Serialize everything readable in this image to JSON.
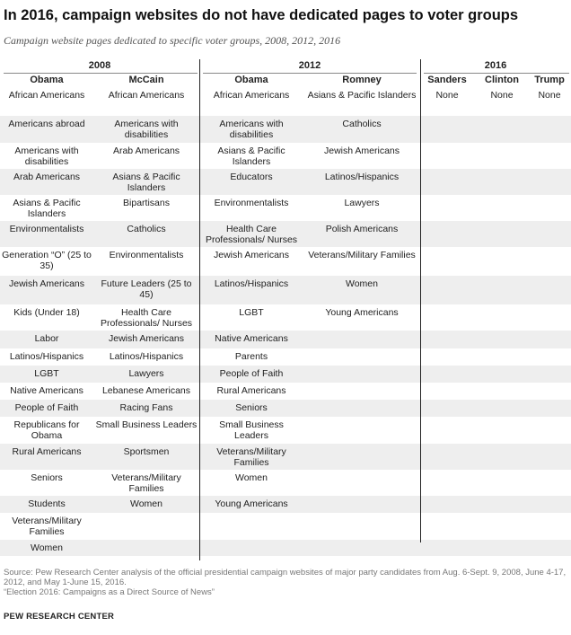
{
  "title": "In 2016, campaign websites do not have dedicated pages to voter groups",
  "subtitle": "Campaign website pages dedicated to specific voter groups, 2008, 2012, 2016",
  "years": [
    "2008",
    "2012",
    "2016"
  ],
  "columns": [
    "Obama",
    "McCain",
    "Obama",
    "Romney",
    "Sanders",
    "Clinton",
    "Trump"
  ],
  "rows": [
    [
      "African Americans",
      "African Americans",
      "African Americans",
      "Asians & Pacific Islanders",
      "None",
      "None",
      "None"
    ],
    [
      "Americans abroad",
      "Americans with disabilities",
      "Americans with disabilities",
      "Catholics",
      "",
      "",
      ""
    ],
    [
      "Americans with disabilities",
      "Arab Americans",
      "Asians & Pacific Islanders",
      "Jewish Americans",
      "",
      "",
      ""
    ],
    [
      "Arab Americans",
      "Asians & Pacific Islanders",
      "Educators",
      "Latinos/Hispanics",
      "",
      "",
      ""
    ],
    [
      "Asians & Pacific Islanders",
      "Bipartisans",
      "Environmentalists",
      "Lawyers",
      "",
      "",
      ""
    ],
    [
      "Environmentalists",
      "Catholics",
      "Health Care Professionals/ Nurses",
      "Polish Americans",
      "",
      "",
      ""
    ],
    [
      "Generation “O” (25 to 35)",
      "Environmentalists",
      "Jewish Americans",
      "Veterans/Military Families",
      "",
      "",
      ""
    ],
    [
      "Jewish Americans",
      "Future Leaders (25 to 45)",
      "Latinos/Hispanics",
      "Women",
      "",
      "",
      ""
    ],
    [
      "Kids (Under 18)",
      "Health Care Professionals/ Nurses",
      "LGBT",
      "Young Americans",
      "",
      "",
      ""
    ],
    [
      "Labor",
      "Jewish Americans",
      "Native Americans",
      "",
      "",
      "",
      ""
    ],
    [
      "Latinos/Hispanics",
      "Latinos/Hispanics",
      "Parents",
      "",
      "",
      "",
      ""
    ],
    [
      "LGBT",
      "Lawyers",
      "People of Faith",
      "",
      "",
      "",
      ""
    ],
    [
      "Native Americans",
      "Lebanese Americans",
      "Rural Americans",
      "",
      "",
      "",
      ""
    ],
    [
      "People of Faith",
      "Racing Fans",
      "Seniors",
      "",
      "",
      "",
      ""
    ],
    [
      "Republicans for Obama",
      "Small Business Leaders",
      "Small Business Leaders",
      "",
      "",
      "",
      ""
    ],
    [
      "Rural Americans",
      "Sportsmen",
      "Veterans/Military Families",
      "",
      "",
      "",
      ""
    ],
    [
      "Seniors",
      "Veterans/Military Families",
      "Women",
      "",
      "",
      "",
      ""
    ],
    [
      "Students",
      "Women",
      "Young Americans",
      "",
      "",
      "",
      ""
    ],
    [
      "Veterans/Military Families",
      "",
      "",
      "",
      "",
      "",
      ""
    ],
    [
      "Women",
      "",
      "",
      "",
      "",
      "",
      ""
    ]
  ],
  "source": "Source: Pew Research Center analysis of the official presidential campaign websites of major party candidates from Aug. 6-Sept. 9, 2008, June 4-17, 2012, and May 1-June 15, 2016.",
  "note": "“Election 2016: Campaigns as a Direct Source of News”",
  "organization": "PEW RESEARCH CENTER"
}
